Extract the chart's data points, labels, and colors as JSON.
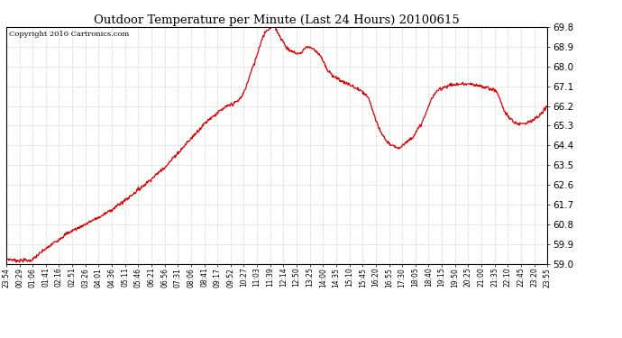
{
  "title": "Outdoor Temperature per Minute (Last 24 Hours) 20100615",
  "copyright": "Copyright 2010 Cartronics.com",
  "background_color": "#ffffff",
  "plot_bg_color": "#ffffff",
  "line_color": "#dd0000",
  "grid_color": "#c8c8c8",
  "ylim": [
    59.0,
    69.8
  ],
  "yticks": [
    59.0,
    59.9,
    60.8,
    61.7,
    62.6,
    63.5,
    64.4,
    65.3,
    66.2,
    67.1,
    68.0,
    68.9,
    69.8
  ],
  "xtick_labels": [
    "23:54",
    "00:29",
    "01:06",
    "01:41",
    "02:16",
    "02:51",
    "03:26",
    "04:01",
    "04:36",
    "05:11",
    "05:46",
    "06:21",
    "06:56",
    "07:31",
    "08:06",
    "08:41",
    "09:17",
    "09:52",
    "10:27",
    "11:03",
    "11:39",
    "12:14",
    "12:50",
    "13:25",
    "14:00",
    "14:35",
    "15:10",
    "15:45",
    "16:20",
    "16:55",
    "17:30",
    "18:05",
    "18:40",
    "19:15",
    "19:50",
    "20:25",
    "21:00",
    "21:35",
    "22:10",
    "22:45",
    "23:20",
    "23:55"
  ],
  "n_points": 1440,
  "keypoints_t": [
    0,
    20,
    60,
    95,
    130,
    175,
    210,
    255,
    300,
    360,
    420,
    480,
    540,
    580,
    620,
    660,
    690,
    710,
    730,
    755,
    780,
    800,
    830,
    855,
    885,
    920,
    960,
    990,
    1020,
    1040,
    1060,
    1080,
    1110,
    1130,
    1155,
    1185,
    1220,
    1260,
    1300,
    1330,
    1360,
    1395,
    1439
  ],
  "keypoints_v": [
    59.25,
    59.15,
    59.15,
    59.55,
    60.0,
    60.5,
    60.8,
    61.2,
    61.7,
    62.5,
    63.4,
    64.5,
    65.6,
    66.1,
    66.5,
    68.2,
    69.6,
    69.8,
    69.3,
    68.7,
    68.6,
    68.9,
    68.6,
    67.8,
    67.4,
    67.1,
    66.6,
    65.2,
    64.45,
    64.3,
    64.5,
    64.8,
    65.6,
    66.5,
    67.0,
    67.15,
    67.2,
    67.1,
    66.9,
    65.8,
    65.4,
    65.5,
    66.2
  ]
}
